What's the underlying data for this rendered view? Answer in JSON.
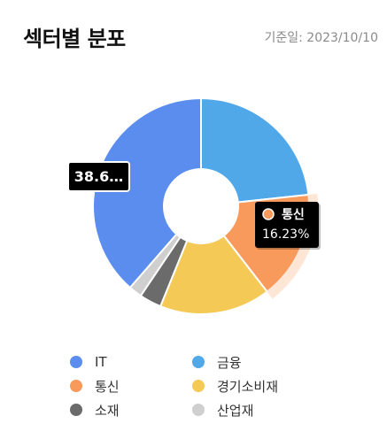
{
  "header": {
    "title": "섹터별 분포",
    "date_label": "기준일: 2023/10/10"
  },
  "chart_data": {
    "type": "pie",
    "variant": "donut",
    "categories": [
      "IT",
      "금융",
      "통신",
      "경기소비재",
      "소재",
      "산업재"
    ],
    "values": [
      38.6,
      23.3,
      16.23,
      16.6,
      3.3,
      1.97
    ],
    "colors": [
      "#5B8DEF",
      "#51A8E8",
      "#F79A5C",
      "#F4C955",
      "#6B6B6B",
      "#CFCFCF"
    ],
    "highlighted": "통신",
    "labels": {
      "IT": "38.6…",
      "통신": "16.23%"
    }
  },
  "legend": {
    "items": [
      {
        "label": "IT",
        "color": "#5B8DEF"
      },
      {
        "label": "금융",
        "color": "#51A8E8"
      },
      {
        "label": "통신",
        "color": "#F79A5C"
      },
      {
        "label": "경기소비재",
        "color": "#F4C955"
      },
      {
        "label": "소재",
        "color": "#6B6B6B"
      },
      {
        "label": "산업재",
        "color": "#CFCFCF"
      }
    ]
  }
}
